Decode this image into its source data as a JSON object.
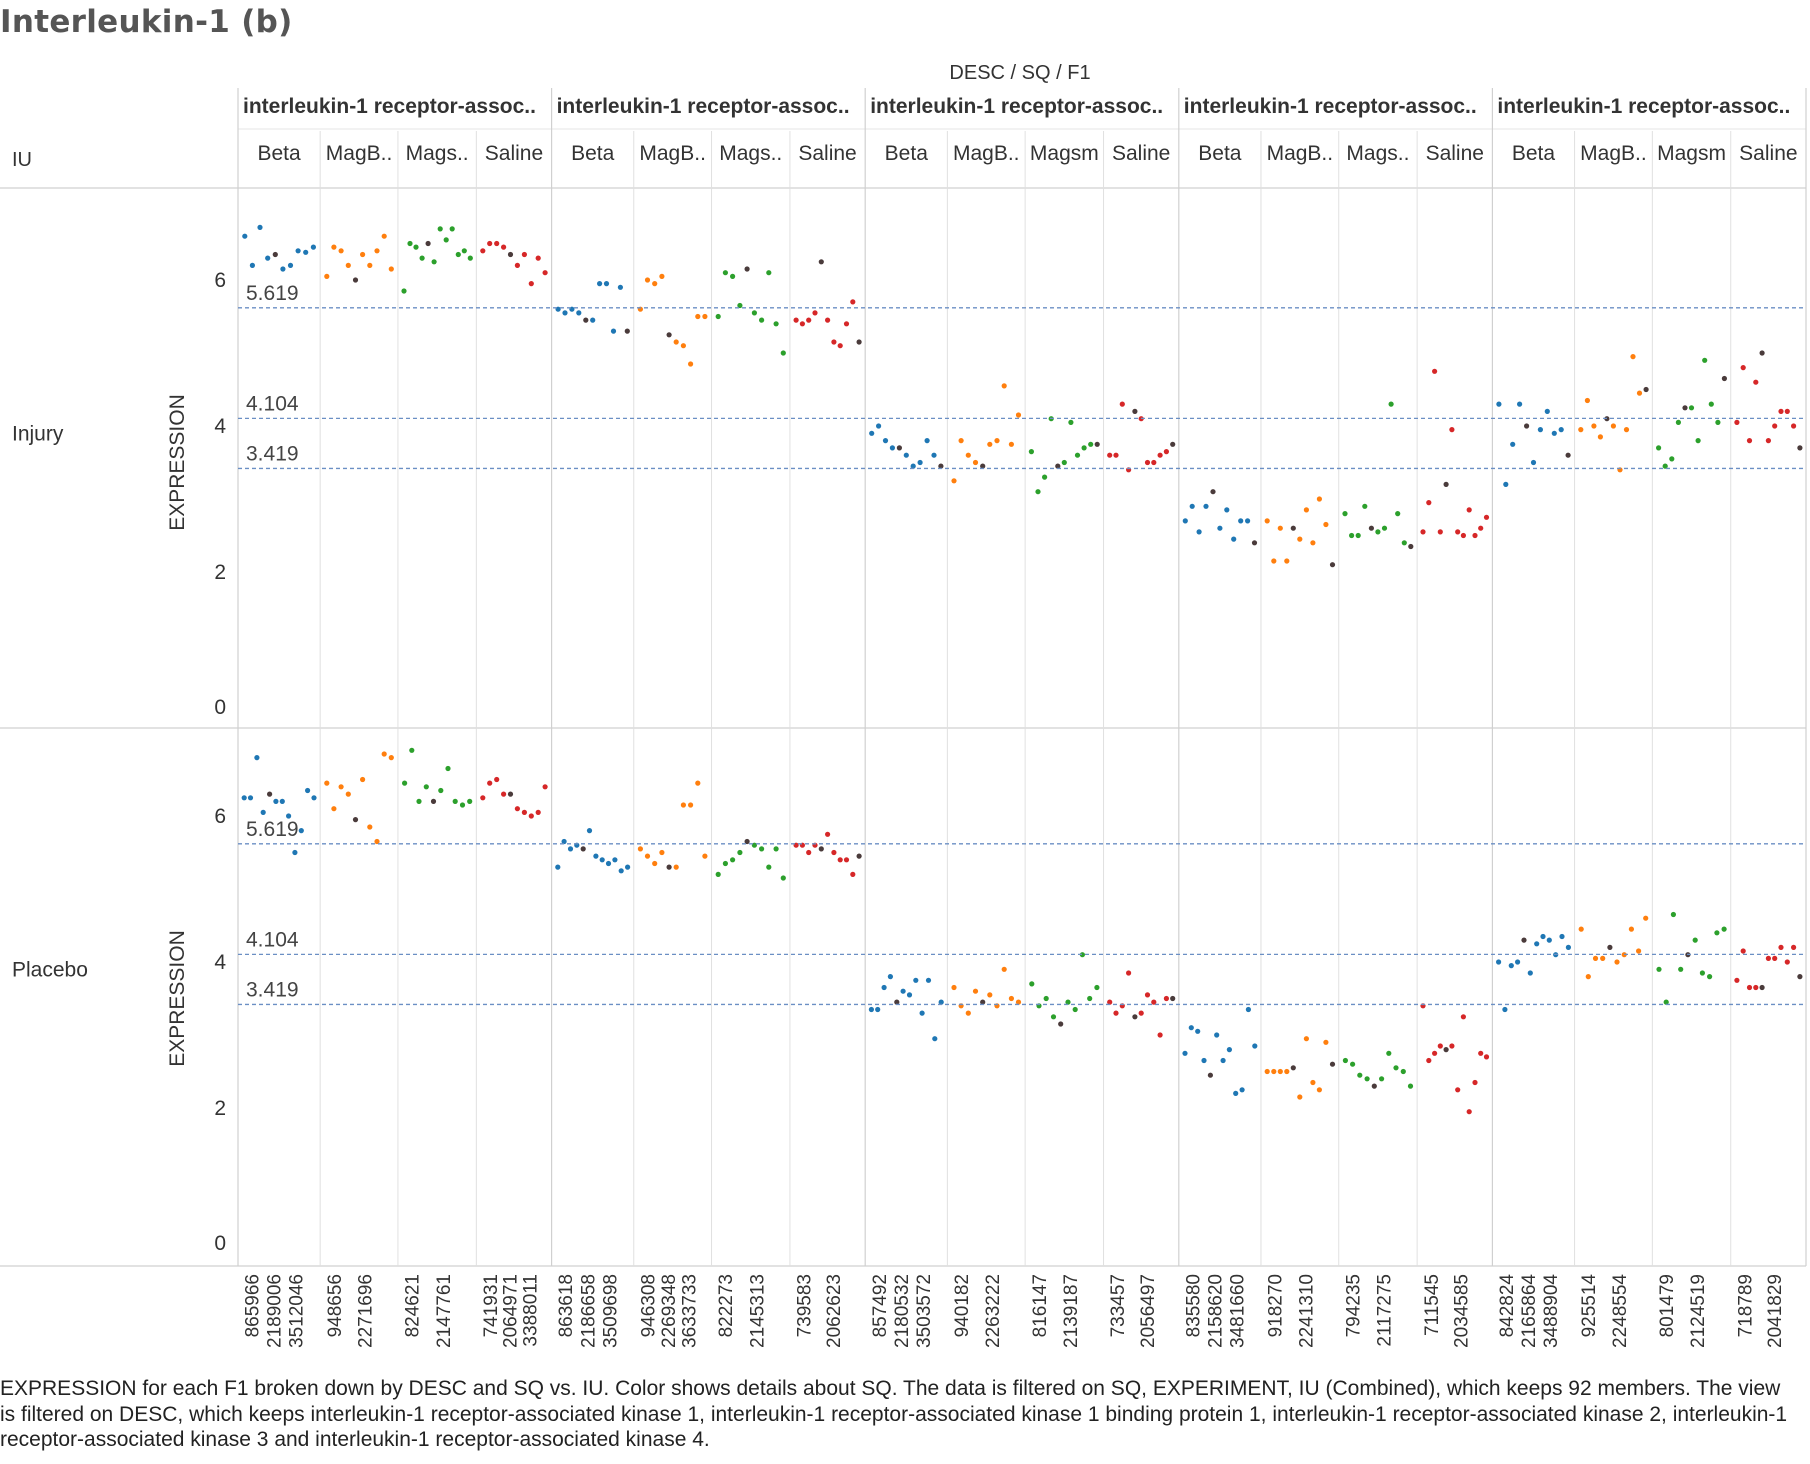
{
  "title": "Interleukin-1 (b)",
  "header": {
    "columns_title": "DESC / SQ / F1",
    "row_dim_label": "IU"
  },
  "caption": "EXPRESSION for each F1 broken down by DESC and SQ vs. IU.  Color shows details about SQ. The data is filtered on SQ, EXPERIMENT, IU (Combined), which keeps 92 members. The view is filtered on DESC, which keeps interleukin-1 receptor-associated kinase 1, interleukin-1 receptor-associated kinase 1 binding protein 1, interleukin-1 receptor-associated kinase 2, interleukin-1 receptor-associated kinase 3 and interleukin-1 receptor-associated kinase 4.",
  "colors": {
    "Beta": "#1f77b4",
    "MagB": "#ff7f0e",
    "Magsm": "#2ca02c",
    "Saline": "#d62728",
    "dark": "#4a3b3b",
    "refline": "#6b8fc4",
    "divider": "#d0d0d0",
    "text": "#333333"
  },
  "chart_data": {
    "type": "scatter",
    "y_label": "EXPRESSION",
    "ylim": [
      0,
      7
    ],
    "y_ticks": [
      0,
      2,
      4,
      6
    ],
    "reference_lines": [
      5.619,
      4.104,
      3.419
    ],
    "rows": [
      "Injury",
      "Placebo"
    ],
    "desc_groups": [
      {
        "label": "interleukin-1 receptor-assoc..",
        "sq": [
          {
            "label": "Beta",
            "color_key": "Beta",
            "f1_labels": [
              "865966",
              "2189006",
              "3512046"
            ],
            "injury": [
              6.6,
              6.2,
              6.72,
              6.3,
              6.35,
              6.15,
              6.2,
              6.4,
              6.38,
              6.45
            ],
            "placebo": [
              6.25,
              6.25,
              6.8,
              6.05,
              6.3,
              6.2,
              6.2,
              6.0,
              5.5,
              5.8,
              6.35,
              6.25
            ]
          },
          {
            "label": "MagB..",
            "color_key": "MagB",
            "f1_labels": [
              "948656",
              "2271696"
            ],
            "injury": [
              6.05,
              6.45,
              6.4,
              6.2,
              6.0,
              6.35,
              6.2,
              6.4,
              6.6,
              6.15
            ],
            "placebo": [
              6.45,
              6.1,
              6.4,
              6.3,
              5.95,
              6.5,
              5.85,
              5.65,
              6.85,
              6.8
            ]
          },
          {
            "label": "Mags..",
            "color_key": "Magsm",
            "f1_labels": [
              "824621",
              "2147761"
            ],
            "injury": [
              5.85,
              6.5,
              6.45,
              6.3,
              6.5,
              6.25,
              6.7,
              6.55,
              6.7,
              6.35,
              6.4,
              6.3
            ],
            "placebo": [
              6.45,
              6.9,
              6.2,
              6.4,
              6.2,
              6.35,
              6.65,
              6.2,
              6.15,
              6.2
            ]
          },
          {
            "label": "Saline",
            "color_key": "Saline",
            "f1_labels": [
              "741931",
              "2064971",
              "3388011"
            ],
            "injury": [
              6.4,
              6.5,
              6.5,
              6.45,
              6.35,
              6.2,
              6.35,
              5.95,
              6.3,
              6.1
            ],
            "placebo": [
              6.25,
              6.45,
              6.5,
              6.3,
              6.3,
              6.1,
              6.05,
              6.0,
              6.05,
              6.4
            ]
          }
        ]
      },
      {
        "label": "interleukin-1 receptor-assoc..",
        "sq": [
          {
            "label": "Beta",
            "color_key": "Beta",
            "f1_labels": [
              "863618",
              "2186658",
              "3509698"
            ],
            "injury": [
              5.6,
              5.55,
              5.6,
              5.55,
              5.45,
              5.45,
              5.95,
              5.95,
              5.3,
              5.9,
              5.3
            ],
            "placebo": [
              5.3,
              5.65,
              5.55,
              5.6,
              5.55,
              5.8,
              5.45,
              5.4,
              5.35,
              5.4,
              5.25,
              5.3
            ]
          },
          {
            "label": "MagB..",
            "color_key": "MagB",
            "f1_labels": [
              "946308",
              "2269348",
              "3633733"
            ],
            "injury": [
              5.6,
              6.0,
              5.95,
              6.05,
              5.25,
              5.15,
              5.1,
              4.85,
              5.5,
              5.5
            ],
            "placebo": [
              5.55,
              5.45,
              5.35,
              5.5,
              5.3,
              5.3,
              6.15,
              6.15,
              6.45,
              5.45
            ]
          },
          {
            "label": "Mags..",
            "color_key": "Magsm",
            "f1_labels": [
              "822273",
              "2145313"
            ],
            "injury": [
              5.5,
              6.1,
              6.05,
              5.65,
              6.15,
              5.55,
              5.45,
              6.1,
              5.4,
              5.0
            ],
            "placebo": [
              5.2,
              5.35,
              5.4,
              5.5,
              5.65,
              5.6,
              5.55,
              5.3,
              5.55,
              5.15
            ]
          },
          {
            "label": "Saline",
            "color_key": "Saline",
            "f1_labels": [
              "739583",
              "2062623"
            ],
            "injury": [
              5.45,
              5.4,
              5.45,
              5.55,
              6.25,
              5.45,
              5.15,
              5.1,
              5.4,
              5.7,
              5.15
            ],
            "placebo": [
              5.6,
              5.6,
              5.5,
              5.6,
              5.55,
              5.75,
              5.5,
              5.4,
              5.4,
              5.2,
              5.45
            ]
          }
        ]
      },
      {
        "label": "interleukin-1 receptor-assoc..",
        "sq": [
          {
            "label": "Beta",
            "color_key": "Beta",
            "f1_labels": [
              "857492",
              "2180532",
              "3503572"
            ],
            "injury": [
              3.9,
              4.0,
              3.8,
              3.7,
              3.7,
              3.6,
              3.45,
              3.5,
              3.8,
              3.6,
              3.45
            ],
            "placebo": [
              3.35,
              3.35,
              3.65,
              3.8,
              3.45,
              3.6,
              3.55,
              3.75,
              3.3,
              3.75,
              2.95,
              3.45
            ]
          },
          {
            "label": "MagB..",
            "color_key": "MagB",
            "f1_labels": [
              "940182",
              "2263222"
            ],
            "injury": [
              3.25,
              3.8,
              3.6,
              3.5,
              3.45,
              3.75,
              3.8,
              4.55,
              3.75,
              4.15
            ],
            "placebo": [
              3.65,
              3.4,
              3.3,
              3.6,
              3.45,
              3.55,
              3.4,
              3.9,
              3.5,
              3.45
            ]
          },
          {
            "label": "Magsm",
            "color_key": "Magsm",
            "f1_labels": [
              "816147",
              "2139187"
            ],
            "injury": [
              3.65,
              3.1,
              3.3,
              4.1,
              3.45,
              3.5,
              4.05,
              3.6,
              3.7,
              3.75,
              3.75
            ],
            "placebo": [
              3.7,
              3.4,
              3.5,
              3.25,
              3.15,
              3.45,
              3.35,
              4.1,
              3.5,
              3.65
            ]
          },
          {
            "label": "Saline",
            "color_key": "Saline",
            "f1_labels": [
              "733457",
              "2056497"
            ],
            "injury": [
              3.6,
              3.6,
              4.3,
              3.4,
              4.2,
              4.1,
              3.5,
              3.5,
              3.6,
              3.65,
              3.75
            ],
            "placebo": [
              3.45,
              3.3,
              3.4,
              3.85,
              3.25,
              3.3,
              3.55,
              3.45,
              3.0,
              3.5,
              3.5
            ]
          }
        ]
      },
      {
        "label": "interleukin-1 receptor-assoc..",
        "sq": [
          {
            "label": "Beta",
            "color_key": "Beta",
            "f1_labels": [
              "835580",
              "2158620",
              "3481660"
            ],
            "injury": [
              2.7,
              2.9,
              2.55,
              2.9,
              3.1,
              2.6,
              2.85,
              2.45,
              2.7,
              2.7,
              2.4
            ],
            "placebo": [
              2.75,
              3.1,
              3.05,
              2.65,
              2.45,
              3.0,
              2.65,
              2.8,
              2.2,
              2.25,
              3.35,
              2.85
            ]
          },
          {
            "label": "MagB..",
            "color_key": "MagB",
            "f1_labels": [
              "918270",
              "2241310"
            ],
            "injury": [
              2.7,
              2.15,
              2.6,
              2.15,
              2.6,
              2.45,
              2.85,
              2.4,
              3.0,
              2.65,
              2.1
            ],
            "placebo": [
              2.5,
              2.5,
              2.5,
              2.5,
              2.55,
              2.15,
              2.95,
              2.35,
              2.25,
              2.9,
              2.6
            ]
          },
          {
            "label": "Mags..",
            "color_key": "Magsm",
            "f1_labels": [
              "794235",
              "2117275"
            ],
            "injury": [
              2.8,
              2.5,
              2.5,
              2.9,
              2.6,
              2.55,
              2.6,
              4.3,
              2.8,
              2.4,
              2.35
            ],
            "placebo": [
              2.65,
              2.6,
              2.45,
              2.4,
              2.3,
              2.4,
              2.75,
              2.55,
              2.5,
              2.3
            ]
          },
          {
            "label": "Saline",
            "color_key": "Saline",
            "f1_labels": [
              "711545",
              "2034585"
            ],
            "injury": [
              2.55,
              2.95,
              4.75,
              2.55,
              3.2,
              3.95,
              2.55,
              2.5,
              2.85,
              2.5,
              2.6,
              2.75
            ],
            "placebo": [
              3.4,
              2.65,
              2.75,
              2.85,
              2.8,
              2.85,
              2.25,
              3.25,
              1.95,
              2.35,
              2.75,
              2.7
            ]
          }
        ]
      },
      {
        "label": "interleukin-1 receptor-assoc..",
        "sq": [
          {
            "label": "Beta",
            "color_key": "Beta",
            "f1_labels": [
              "842824",
              "2165864",
              "3488904"
            ],
            "injury": [
              4.3,
              3.2,
              3.75,
              4.3,
              4.0,
              3.5,
              3.95,
              4.2,
              3.9,
              3.95,
              3.6
            ],
            "placebo": [
              4.0,
              3.35,
              3.95,
              4.0,
              4.3,
              3.85,
              4.25,
              4.35,
              4.3,
              4.1,
              4.35,
              4.2
            ]
          },
          {
            "label": "MagB..",
            "color_key": "MagB",
            "f1_labels": [
              "925514",
              "2248554"
            ],
            "injury": [
              3.95,
              4.35,
              4.0,
              3.85,
              4.1,
              4.0,
              3.4,
              3.95,
              4.95,
              4.45,
              4.5
            ],
            "placebo": [
              4.45,
              3.8,
              4.05,
              4.05,
              4.2,
              4.0,
              4.1,
              4.45,
              4.15,
              4.6
            ]
          },
          {
            "label": "Magsm",
            "color_key": "Magsm",
            "f1_labels": [
              "801479",
              "2124519"
            ],
            "injury": [
              3.7,
              3.45,
              3.55,
              4.05,
              4.25,
              4.25,
              3.8,
              4.9,
              4.3,
              4.05,
              4.65
            ],
            "placebo": [
              3.9,
              3.45,
              4.65,
              3.9,
              4.1,
              4.3,
              3.85,
              3.8,
              4.4,
              4.45
            ]
          },
          {
            "label": "Saline",
            "color_key": "Saline",
            "f1_labels": [
              "718789",
              "2041829"
            ],
            "injury": [
              4.05,
              4.8,
              3.8,
              4.6,
              5.0,
              3.8,
              4.0,
              4.2,
              4.2,
              4.0,
              3.7
            ],
            "placebo": [
              3.75,
              4.15,
              3.65,
              3.65,
              3.65,
              4.05,
              4.05,
              4.2,
              4.0,
              4.2,
              3.8
            ]
          }
        ]
      }
    ]
  }
}
